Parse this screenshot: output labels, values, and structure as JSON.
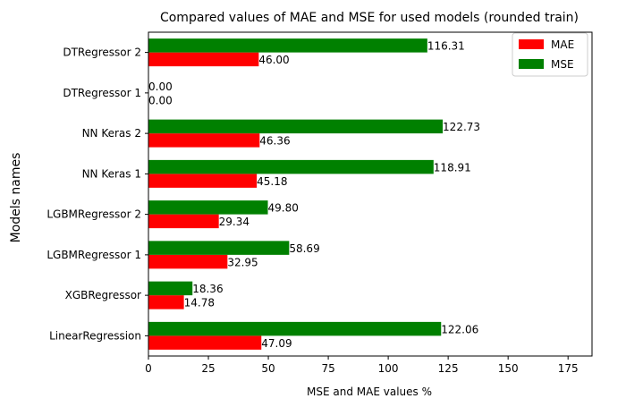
{
  "chart_data": {
    "type": "bar",
    "orientation": "horizontal",
    "title": "Compared values of MAE and MSE for used models (rounded train)",
    "xlabel": "MSE and MAE values %",
    "ylabel": "Models names",
    "categories": [
      "LinearRegression",
      "XGBRegressor",
      "LGBMRegressor 1",
      "LGBMRegressor 2",
      "NN Keras 1",
      "NN Keras 2",
      "DTRegressor 1",
      "DTRegressor 2"
    ],
    "series": [
      {
        "name": "MAE",
        "color": "#ff0000",
        "values": [
          47.09,
          14.78,
          32.95,
          29.34,
          45.18,
          46.36,
          0.0,
          46.0
        ],
        "labels": [
          "47.09",
          "14.78",
          "32.95",
          "29.34",
          "45.18",
          "46.36",
          "0.00",
          "46.00"
        ]
      },
      {
        "name": "MSE",
        "color": "#008000",
        "values": [
          122.06,
          18.36,
          58.69,
          49.8,
          118.91,
          122.73,
          0.0,
          116.31
        ],
        "labels": [
          "122.06",
          "18.36",
          "58.69",
          "49.80",
          "118.91",
          "122.73",
          "0.00",
          "116.31"
        ]
      }
    ],
    "xlim": [
      0,
      185
    ],
    "xticks": [
      0,
      25,
      50,
      75,
      100,
      125,
      150,
      175
    ],
    "grid": false,
    "legend_position": "top-right"
  }
}
